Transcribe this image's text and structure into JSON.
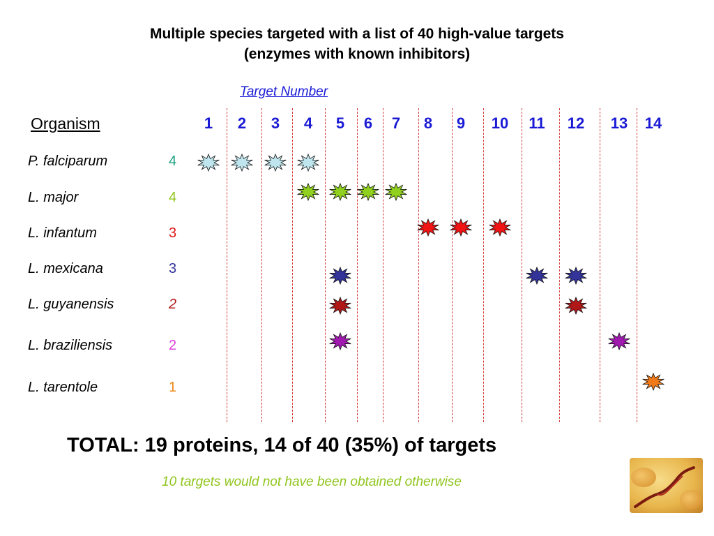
{
  "slide": {
    "title_line1": "Multiple species targeted with a list of 40 high-value targets",
    "title_line2": "(enzymes with known inhibitors)",
    "target_number_label": "Target Number",
    "organism_header": "Organism",
    "column_numbers": [
      "1",
      "2",
      "3",
      "4",
      "5",
      "6",
      "7",
      "8",
      "9",
      "10",
      "11",
      "12",
      "13",
      "14"
    ],
    "organisms": [
      {
        "name": "P. falciparum",
        "count": "4",
        "count_color": "#1aa080",
        "count_italic": false
      },
      {
        "name": "L. major",
        "count": "4",
        "count_color": "#8fc51c",
        "count_italic": false
      },
      {
        "name": "L. infantum",
        "count": "3",
        "count_color": "#e01818",
        "count_italic": false
      },
      {
        "name": "L. mexicana",
        "count": "3",
        "count_color": "#33339a",
        "count_italic": false
      },
      {
        "name": "L. guyanensis",
        "count": "2",
        "count_color": "#b01818",
        "count_italic": true
      },
      {
        "name": "L. braziliensis",
        "count": "2",
        "count_color": "#e040e0",
        "count_italic": false
      },
      {
        "name": "L. tarentole",
        "count": "1",
        "count_color": "#ee8a1a",
        "count_italic": false
      }
    ],
    "markers": [
      {
        "organism": "P. falciparum",
        "target": 1,
        "color": "#bfe6ee"
      },
      {
        "organism": "P. falciparum",
        "target": 2,
        "color": "#bfe6ee"
      },
      {
        "organism": "P. falciparum",
        "target": 3,
        "color": "#bfe6ee"
      },
      {
        "organism": "P. falciparum",
        "target": 4,
        "color": "#bfe6ee"
      },
      {
        "organism": "L. major",
        "target": 4,
        "color": "#8fd11e"
      },
      {
        "organism": "L. major",
        "target": 5,
        "color": "#8fd11e"
      },
      {
        "organism": "L. major",
        "target": 6,
        "color": "#8fd11e"
      },
      {
        "organism": "L. major",
        "target": 7,
        "color": "#8fd11e"
      },
      {
        "organism": "L. infantum",
        "target": 8,
        "color": "#f01414"
      },
      {
        "organism": "L. infantum",
        "target": 9,
        "color": "#f01414"
      },
      {
        "organism": "L. infantum",
        "target": 10,
        "color": "#f01414"
      },
      {
        "organism": "L. mexicana",
        "target": 5,
        "color": "#33339a"
      },
      {
        "organism": "L. mexicana",
        "target": 11,
        "color": "#33339a"
      },
      {
        "organism": "L. mexicana",
        "target": 12,
        "color": "#33339a"
      },
      {
        "organism": "L. guyanensis",
        "target": 5,
        "color": "#b01818"
      },
      {
        "organism": "L. guyanensis",
        "target": 12,
        "color": "#b01818"
      },
      {
        "organism": "L. braziliensis",
        "target": 5,
        "color": "#a01ab0"
      },
      {
        "organism": "L. braziliensis",
        "target": 13,
        "color": "#a01ab0"
      },
      {
        "organism": "L. tarentole",
        "target": 14,
        "color": "#f07a1a"
      }
    ],
    "total_text": "TOTAL:  19 proteins, 14 of 40 (35%) of targets",
    "note_text": "10 targets would not have been obtained otherwise",
    "image_icon": "trypanosome-micrograph"
  }
}
